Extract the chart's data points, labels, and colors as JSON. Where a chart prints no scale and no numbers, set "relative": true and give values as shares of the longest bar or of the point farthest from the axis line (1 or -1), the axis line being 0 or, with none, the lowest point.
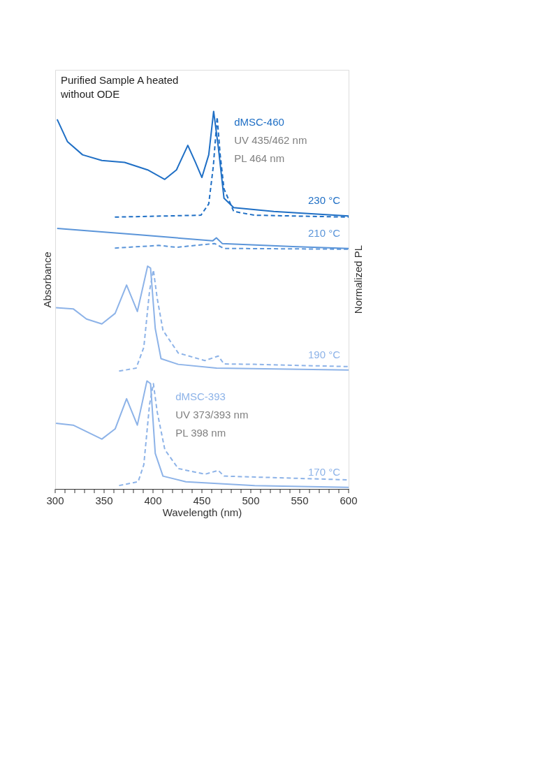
{
  "chart_data": {
    "type": "line",
    "relative": true,
    "title": "Purified Sample A heated\nwithout ODE",
    "xlabel": "Wavelength (nm)",
    "ylabel": "Absorbance",
    "y2label": "Normalized PL",
    "xlim": [
      300,
      600
    ],
    "xticks": [
      300,
      {
        "value": 310,
        "label": null
      },
      {
        "value": 320,
        "label": null
      },
      {
        "value": 330,
        "label": null
      },
      {
        "value": 340,
        "label": null
      },
      350,
      {
        "value": 360,
        "label": null
      },
      {
        "value": 370,
        "label": null
      },
      {
        "value": 380,
        "label": null
      },
      {
        "value": 390,
        "label": null
      },
      400,
      {
        "value": 410,
        "label": null
      },
      {
        "value": 420,
        "label": null
      },
      {
        "value": 430,
        "label": null
      },
      {
        "value": 440,
        "label": null
      },
      450,
      {
        "value": 460,
        "label": null
      },
      {
        "value": 470,
        "label": null
      },
      {
        "value": 480,
        "label": null
      },
      {
        "value": 490,
        "label": null
      },
      500,
      {
        "value": 510,
        "label": null
      },
      {
        "value": 520,
        "label": null
      },
      {
        "value": 530,
        "label": null
      },
      {
        "value": 540,
        "label": null
      },
      550,
      {
        "value": 560,
        "label": null
      },
      {
        "value": 570,
        "label": null
      },
      {
        "value": 580,
        "label": null
      },
      {
        "value": 590,
        "label": null
      },
      600
    ],
    "grid": false,
    "legend": false,
    "marker": "none",
    "tick_labels": "x",
    "series": [
      {
        "name": "230 °C",
        "color": "#1f6fc5",
        "line_style": "solid",
        "x": [
          302,
          312.5,
          328,
          347.7,
          371,
          394.5,
          412,
          424,
          435.6,
          443.4,
          450,
          457,
          462,
          466.8,
          472.6,
          482.5,
          523.5,
          600
        ],
        "values": [
          0.979,
          0.92,
          0.885,
          0.87,
          0.865,
          0.845,
          0.82,
          0.845,
          0.91,
          0.865,
          0.825,
          0.885,
          1.0,
          0.905,
          0.77,
          0.745,
          0.735,
          0.723
        ]
      },
      {
        "color": "#1f6fc5",
        "line_style": "dashed",
        "x": [
          361,
          449,
          457,
          461.7,
          465.6,
          468.7,
          472.6,
          482.5,
          504,
          600
        ],
        "values": [
          0.72,
          0.725,
          0.755,
          0.855,
          0.985,
          0.885,
          0.795,
          0.735,
          0.725,
          0.72
        ]
      },
      {
        "name": "210 °C",
        "color": "#5b95d9",
        "line_style": "solid",
        "x": [
          302,
          386.7,
          461,
          464.8,
          470.8,
          543,
          600
        ],
        "values": [
          0.69,
          0.673,
          0.657,
          0.665,
          0.65,
          0.642,
          0.637
        ]
      },
      {
        "color": "#5b95d9",
        "line_style": "dashed",
        "x": [
          361,
          406,
          424,
          463,
          472.6,
          600
        ],
        "values": [
          0.638,
          0.645,
          0.64,
          0.65,
          0.637,
          0.635
        ]
      },
      {
        "name": "190 °C",
        "color": "#8db3e8",
        "line_style": "solid",
        "x": [
          300.8,
          318.4,
          332,
          347.7,
          361.3,
          373,
          384,
          394.5,
          397.5,
          402.3,
          408.2,
          425.8,
          464.9,
          600
        ],
        "values": [
          0.48,
          0.477,
          0.45,
          0.437,
          0.465,
          0.54,
          0.47,
          0.59,
          0.585,
          0.425,
          0.345,
          0.33,
          0.32,
          0.315
        ]
      },
      {
        "color": "#8db3e8",
        "line_style": "dashed",
        "x": [
          365.3,
          382.8,
          390.6,
          396.5,
          400.4,
          404.3,
          410.2,
          425.8,
          453.1,
          466.8,
          472.6,
          504,
          600
        ],
        "values": [
          0.312,
          0.32,
          0.375,
          0.525,
          0.58,
          0.505,
          0.42,
          0.36,
          0.34,
          0.352,
          0.331,
          0.33,
          0.324
        ]
      },
      {
        "name": "170 °C",
        "color": "#8db3e8",
        "line_style": "solid",
        "x": [
          300.8,
          318.4,
          347.7,
          361.3,
          373,
          384,
          393.8,
          397.5,
          402.3,
          410.2,
          433.6,
          504,
          600
        ],
        "values": [
          0.174,
          0.169,
          0.132,
          0.159,
          0.239,
          0.169,
          0.286,
          0.279,
          0.094,
          0.034,
          0.019,
          0.009,
          0.004
        ]
      },
      {
        "color": "#8db3e8",
        "line_style": "dashed",
        "x": [
          365.3,
          384.8,
          390.6,
          396.5,
          400.4,
          404.3,
          412.1,
          425.8,
          453.1,
          466.8,
          472.6,
          600
        ],
        "values": [
          0.009,
          0.019,
          0.064,
          0.224,
          0.279,
          0.204,
          0.104,
          0.054,
          0.039,
          0.049,
          0.034,
          0.024
        ]
      }
    ],
    "annotations": [
      "dMSC-460",
      "UV 435/462 nm",
      "PL  464 nm",
      "dMSC-393",
      "UV 373/393 nm",
      "PL  398 nm"
    ]
  }
}
